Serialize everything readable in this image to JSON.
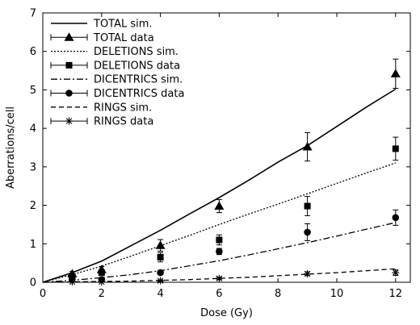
{
  "chart_data": {
    "type": "line",
    "xlabel": "Dose (Gy)",
    "ylabel": "Aberrations/cell",
    "xlim": [
      0,
      12.5
    ],
    "ylim": [
      0,
      7
    ],
    "xticks": [
      0,
      2,
      4,
      6,
      8,
      10,
      12
    ],
    "yticks": [
      0,
      1,
      2,
      3,
      4,
      5,
      6,
      7
    ],
    "grid": false,
    "legend_position": "top-left",
    "series": [
      {
        "name": "TOTAL sim.",
        "kind": "line",
        "style": "solid",
        "x": [
          0,
          1,
          2,
          3,
          4,
          5,
          6,
          7,
          8,
          9,
          10,
          11,
          12
        ],
        "y": [
          0,
          0.25,
          0.55,
          0.95,
          1.35,
          1.78,
          2.2,
          2.65,
          3.12,
          3.55,
          4.05,
          4.55,
          5.02
        ]
      },
      {
        "name": "TOTAL data",
        "kind": "points",
        "marker": "triangle",
        "x": [
          1,
          2,
          4,
          6,
          9,
          12
        ],
        "y": [
          0.22,
          0.33,
          0.96,
          1.98,
          3.52,
          5.42
        ],
        "err": [
          0.06,
          0.08,
          0.15,
          0.17,
          0.37,
          0.38
        ]
      },
      {
        "name": "DELETIONS sim.",
        "kind": "line",
        "style": "dotted",
        "x": [
          0,
          1,
          2,
          3,
          4,
          5,
          6,
          7,
          8,
          9,
          10,
          11,
          12
        ],
        "y": [
          0,
          0.2,
          0.42,
          0.68,
          0.95,
          1.22,
          1.5,
          1.77,
          2.03,
          2.3,
          2.57,
          2.84,
          3.1
        ]
      },
      {
        "name": "DELETIONS data",
        "kind": "points",
        "marker": "square",
        "x": [
          1,
          2,
          4,
          6,
          9,
          12
        ],
        "y": [
          0.15,
          0.25,
          0.65,
          1.1,
          1.98,
          3.47
        ],
        "err": [
          0.05,
          0.06,
          0.12,
          0.13,
          0.25,
          0.3
        ]
      },
      {
        "name": "DICENTRICS sim.",
        "kind": "line",
        "style": "dashdot",
        "x": [
          0,
          1,
          2,
          3,
          4,
          5,
          6,
          7,
          8,
          9,
          10,
          11,
          12
        ],
        "y": [
          0,
          0.05,
          0.12,
          0.2,
          0.3,
          0.43,
          0.56,
          0.71,
          0.87,
          1.03,
          1.2,
          1.38,
          1.55
        ]
      },
      {
        "name": "DICENTRICS data",
        "kind": "points",
        "marker": "circle",
        "x": [
          1,
          2,
          4,
          6,
          9,
          12
        ],
        "y": [
          0.08,
          0.07,
          0.25,
          0.8,
          1.3,
          1.68
        ],
        "err": [
          0.03,
          0.03,
          0.05,
          0.08,
          0.22,
          0.2
        ]
      },
      {
        "name": "RINGS sim.",
        "kind": "line",
        "style": "dashed",
        "x": [
          0,
          1,
          2,
          3,
          4,
          5,
          6,
          7,
          8,
          9,
          10,
          11,
          12
        ],
        "y": [
          0,
          0.01,
          0.02,
          0.03,
          0.05,
          0.07,
          0.1,
          0.13,
          0.17,
          0.21,
          0.25,
          0.3,
          0.35
        ]
      },
      {
        "name": "RINGS data",
        "kind": "points",
        "marker": "star",
        "x": [
          1,
          2,
          4,
          6,
          9,
          12
        ],
        "y": [
          0.01,
          0.01,
          0.04,
          0.1,
          0.22,
          0.25
        ],
        "err": [
          0.01,
          0.01,
          0.02,
          0.03,
          0.05,
          0.07
        ]
      }
    ]
  }
}
